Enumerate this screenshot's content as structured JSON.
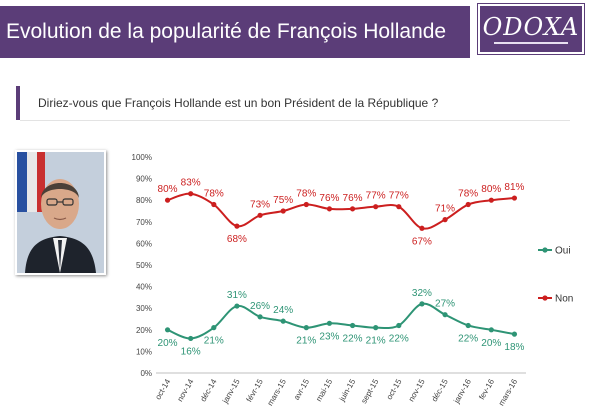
{
  "header": {
    "title": "Evolution de la popularité de François Hollande",
    "logo_text": "ODOXA"
  },
  "question": "Diriez-vous que François Hollande est un bon Président de la République ?",
  "colors": {
    "brand": "#5b3d78",
    "oui": "#2e9475",
    "non": "#cc1f1f"
  },
  "photo": {
    "icon": "person-portrait-icon"
  },
  "chart_data": {
    "type": "line",
    "categories": [
      "oct-14",
      "nov-14",
      "déc-14",
      "janv-15",
      "févr-15",
      "mars-15",
      "avr-15",
      "mai-15",
      "juin-15",
      "sept-15",
      "oct-15",
      "nov-15",
      "déc-15",
      "janv-16",
      "fev-16",
      "mars-16"
    ],
    "series": [
      {
        "name": "Oui",
        "values": [
          20,
          16,
          21,
          31,
          26,
          24,
          21,
          23,
          22,
          21,
          22,
          32,
          27,
          22,
          20,
          18
        ]
      },
      {
        "name": "Non",
        "values": [
          80,
          83,
          78,
          68,
          73,
          75,
          78,
          76,
          76,
          77,
          77,
          67,
          71,
          78,
          80,
          81
        ]
      }
    ],
    "value_labels": {
      "Oui": [
        "20%",
        "16%",
        "21%",
        "31%",
        "26%",
        "24%",
        "21%",
        "23%",
        "22%",
        "21%",
        "22%",
        "32%",
        "27%",
        "22%",
        "20%",
        "18%"
      ],
      "Non": [
        "80%",
        "83%",
        "78%",
        "68%",
        "73%",
        "75%",
        "78%",
        "76%",
        "76%",
        "77%",
        "77%",
        "67%",
        "71%",
        "78%",
        "80%",
        "81%"
      ]
    },
    "y_ticks": [
      "0%",
      "10%",
      "20%",
      "30%",
      "40%",
      "50%",
      "60%",
      "70%",
      "80%",
      "90%",
      "100%"
    ],
    "ylim": [
      0,
      100
    ],
    "grid": false,
    "legend_position": "right",
    "title": "",
    "xlabel": "",
    "ylabel": ""
  }
}
